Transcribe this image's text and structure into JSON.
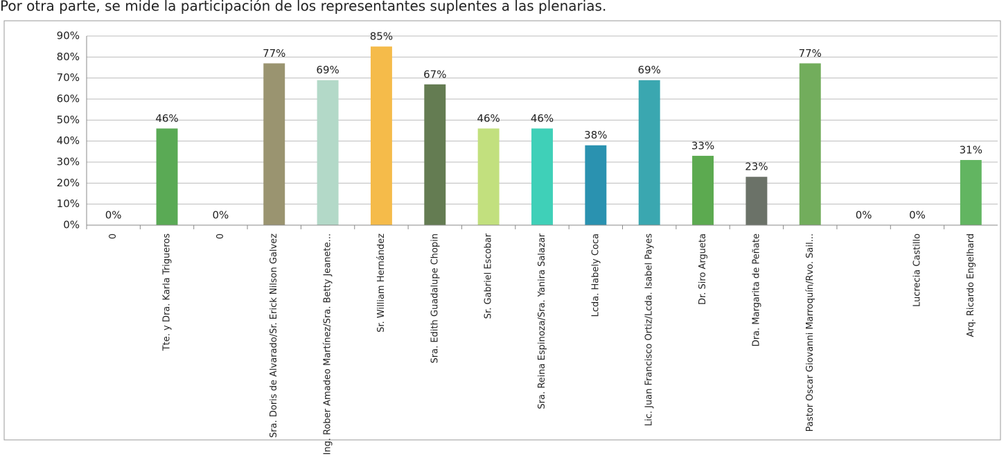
{
  "intro": "Por otra parte, se mide la participación de los representantes suplentes a las plenarias.",
  "chart_data": {
    "type": "bar",
    "categories": [
      "0",
      "Tte. y Dra. Karla Trigueros",
      "0",
      "Sra. Doris de Alvarado/Sr. Erick Nilson Galvez",
      "Ing. Rober Amadeo Martínez/Sra. Betty Jeanete...",
      "Sr. William Hernández",
      "Sra. Edith Guadalupe Chopin",
      "Sr. Gabriel Escobar",
      "Sra. Reina Espinoza/Sra. Yanira Salazar",
      "Lcda. Habely Coca",
      "Lic. Juan Francisco Ortiz/Lcda. Isabel Payes",
      "Dr. Siro Argueta",
      "Dra. Margarita de Peñate",
      "Pastor Oscar Giovanni Marroquín/Rvo. Sail...",
      null,
      "Lucrecia Castillo",
      "Arq. Ricardo Engelhard"
    ],
    "values": [
      0,
      46,
      0,
      77,
      69,
      85,
      67,
      46,
      46,
      38,
      69,
      33,
      23,
      77,
      0,
      0,
      31
    ],
    "value_labels": [
      "0%",
      "46%",
      "0%",
      "77%",
      "69%",
      "85%",
      "67%",
      "46%",
      "46%",
      "38%",
      "69%",
      "33%",
      "23%",
      "77%",
      "0%",
      "0%",
      "31%"
    ],
    "colors": [
      "#5aaa55",
      "#5aaa55",
      "#5aaa55",
      "#9a9470",
      "#b3d9c8",
      "#f5bb4a",
      "#647c52",
      "#c2e07e",
      "#3fd0b8",
      "#2a92b0",
      "#3aa7b0",
      "#5caa50",
      "#6b7268",
      "#72ad5c",
      "#62b561",
      "#62b561",
      "#62b561"
    ],
    "ylim": [
      0,
      90
    ],
    "yticks": [
      {
        "value": 0,
        "label": "0%"
      },
      {
        "value": 10,
        "label": "10%"
      },
      {
        "value": 20,
        "label": "20%"
      },
      {
        "value": 30,
        "label": "30%"
      },
      {
        "value": 40,
        "label": "40%"
      },
      {
        "value": 50,
        "label": "50%"
      },
      {
        "value": 60,
        "label": "60%"
      },
      {
        "value": 70,
        "label": "70%"
      },
      {
        "value": 80,
        "label": "80%"
      },
      {
        "value": 90,
        "label": "90%"
      }
    ],
    "grid": true
  }
}
